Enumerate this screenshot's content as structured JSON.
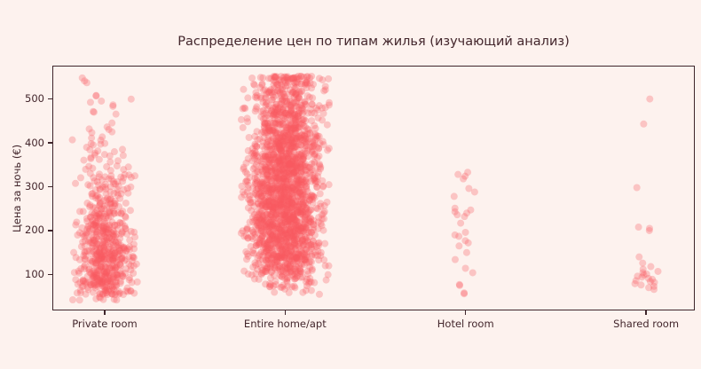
{
  "colors": {
    "background": "#fdf2ee",
    "marker": "#fa5a5f",
    "axis": "#3e252b",
    "text": "#43262c"
  },
  "chart_data": {
    "type": "scatter",
    "variant": "strip-plot",
    "title": "Распределение цен по типам жилья (изучающий анализ)",
    "xlabel": "",
    "ylabel": "Цена за ночь (€)",
    "categories": [
      "Private room",
      "Entire home/apt",
      "Hotel room",
      "Shared room"
    ],
    "yticks": [
      100,
      200,
      300,
      400,
      500
    ],
    "ylim": [
      20,
      574
    ],
    "xlim": [
      -0.285,
      3.265
    ],
    "grid": false,
    "legend": false,
    "marker": {
      "radius": 4,
      "alpha": 0.3,
      "color": "#fa5a5f"
    },
    "seed": 42,
    "series": [
      {
        "name": "Private room",
        "price_range": [
          38,
          552
        ],
        "jitter_sigma": 15,
        "jitter_max": 38,
        "strata": [
          [
            525,
            552,
            3
          ],
          [
            455,
            515,
            10
          ],
          [
            395,
            455,
            14
          ],
          [
            325,
            395,
            28
          ],
          [
            280,
            325,
            45
          ],
          [
            220,
            280,
            80
          ],
          [
            170,
            220,
            120
          ],
          [
            100,
            170,
            200
          ],
          [
            55,
            100,
            130
          ],
          [
            38,
            55,
            12
          ]
        ]
      },
      {
        "name": "Entire home/apt",
        "price_range": [
          48,
          552
        ],
        "jitter_sigma": 20,
        "jitter_max": 50,
        "strata": [
          [
            546,
            552,
            35
          ],
          [
            520,
            546,
            55
          ],
          [
            480,
            520,
            100
          ],
          [
            440,
            480,
            130
          ],
          [
            400,
            440,
            160
          ],
          [
            360,
            400,
            185
          ],
          [
            320,
            360,
            200
          ],
          [
            280,
            320,
            215
          ],
          [
            240,
            280,
            225
          ],
          [
            200,
            240,
            225
          ],
          [
            160,
            200,
            210
          ],
          [
            130,
            160,
            150
          ],
          [
            100,
            130,
            95
          ],
          [
            70,
            100,
            45
          ],
          [
            48,
            70,
            8
          ]
        ]
      },
      {
        "name": "Hotel room",
        "jitter_sigma": 6,
        "jitter_max": 14,
        "points": [
          56,
          58,
          75,
          77,
          104,
          114,
          134,
          150,
          165,
          172,
          177,
          187,
          190,
          196,
          217,
          232,
          236,
          240,
          243,
          247,
          251,
          278,
          288,
          296,
          318,
          324,
          328,
          333
        ]
      },
      {
        "name": "Shared room",
        "jitter_sigma": 7,
        "jitter_max": 17,
        "points": [
          66,
          70,
          73,
          76,
          79,
          82,
          84,
          86,
          89,
          91,
          94,
          96,
          99,
          101,
          104,
          107,
          112,
          118,
          126,
          140,
          200,
          205,
          208,
          298,
          443,
          500
        ]
      }
    ]
  }
}
